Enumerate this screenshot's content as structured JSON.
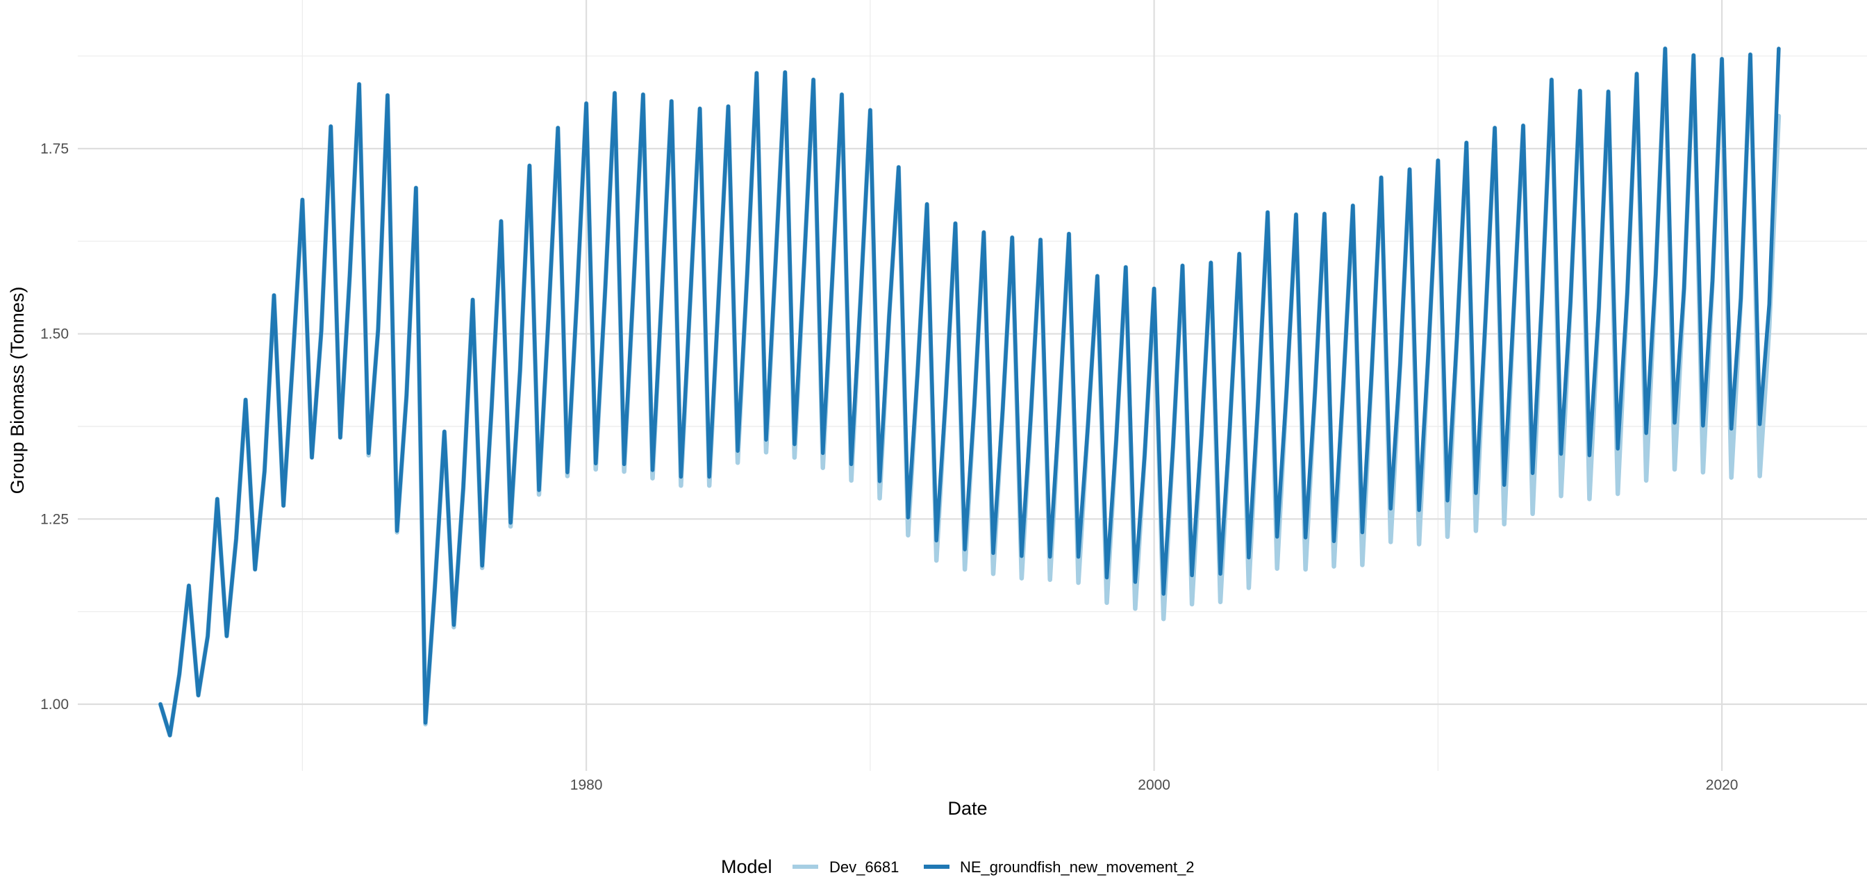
{
  "chart_data": {
    "type": "line",
    "title": "",
    "xlabel": "Date",
    "ylabel": "Group Biomass (Tonnes)",
    "xlim": [
      1964.5,
      2023
    ],
    "ylim": [
      0.935,
      1.895
    ],
    "x_ticks": [
      1980,
      2000,
      2020
    ],
    "x_tick_labels": [
      "1980",
      "2000",
      "2020"
    ],
    "x_minor_ticks": [
      1970,
      1990,
      2010
    ],
    "y_ticks": [
      1.0,
      1.25,
      1.5,
      1.75
    ],
    "y_tick_labels": [
      "1.00",
      "1.25",
      "1.50",
      "1.75"
    ],
    "y_minor_ticks": [
      1.125,
      1.375,
      1.625,
      1.875
    ],
    "grid": true,
    "legend": {
      "title": "Model",
      "position": "bottom",
      "entries": [
        "Dev_6681",
        "NE_groundfish_new_movement_2"
      ]
    },
    "x_start": 1965.0,
    "series": [
      {
        "name": "Dev_6681",
        "color": "#a6cee3",
        "values": [
          1.0,
          0.958,
          1.041,
          1.16,
          1.012,
          1.092,
          1.277,
          1.092,
          1.223,
          1.411,
          1.182,
          1.315,
          1.552,
          1.268,
          1.468,
          1.681,
          1.333,
          1.504,
          1.78,
          1.36,
          1.578,
          1.837,
          1.336,
          1.506,
          1.822,
          1.232,
          1.417,
          1.697,
          0.973,
          1.158,
          1.368,
          1.104,
          1.292,
          1.546,
          1.184,
          1.402,
          1.652,
          1.24,
          1.451,
          1.727,
          1.283,
          1.521,
          1.778,
          1.308,
          1.546,
          1.811,
          1.317,
          1.561,
          1.825,
          1.314,
          1.568,
          1.823,
          1.305,
          1.559,
          1.814,
          1.295,
          1.55,
          1.804,
          1.295,
          1.555,
          1.807,
          1.326,
          1.581,
          1.852,
          1.34,
          1.596,
          1.853,
          1.333,
          1.591,
          1.843,
          1.319,
          1.577,
          1.823,
          1.302,
          1.553,
          1.802,
          1.278,
          1.523,
          1.725,
          1.228,
          1.447,
          1.675,
          1.194,
          1.418,
          1.649,
          1.182,
          1.404,
          1.637,
          1.176,
          1.397,
          1.63,
          1.17,
          1.396,
          1.627,
          1.168,
          1.402,
          1.635,
          1.164,
          1.376,
          1.578,
          1.137,
          1.357,
          1.59,
          1.129,
          1.336,
          1.561,
          1.115,
          1.349,
          1.592,
          1.135,
          1.364,
          1.596,
          1.138,
          1.374,
          1.608,
          1.157,
          1.412,
          1.664,
          1.183,
          1.424,
          1.661,
          1.182,
          1.422,
          1.662,
          1.186,
          1.432,
          1.673,
          1.188,
          1.451,
          1.711,
          1.219,
          1.46,
          1.722,
          1.216,
          1.48,
          1.734,
          1.226,
          1.495,
          1.758,
          1.234,
          1.516,
          1.778,
          1.243,
          1.533,
          1.781,
          1.257,
          1.552,
          1.843,
          1.281,
          1.543,
          1.828,
          1.277,
          1.536,
          1.827,
          1.284,
          1.556,
          1.851,
          1.302,
          1.581,
          1.885,
          1.317,
          1.561,
          1.876,
          1.313,
          1.571,
          1.871,
          1.306,
          1.548,
          1.877,
          1.308,
          1.51,
          1.794
        ]
      },
      {
        "name": "NE_groundfish_new_movement_2",
        "color": "#1f78b4",
        "values": [
          1.0,
          0.958,
          1.041,
          1.16,
          1.012,
          1.092,
          1.277,
          1.092,
          1.223,
          1.411,
          1.182,
          1.315,
          1.552,
          1.268,
          1.468,
          1.681,
          1.333,
          1.504,
          1.78,
          1.36,
          1.578,
          1.837,
          1.339,
          1.506,
          1.822,
          1.234,
          1.417,
          1.697,
          0.975,
          1.158,
          1.368,
          1.107,
          1.292,
          1.546,
          1.187,
          1.402,
          1.652,
          1.245,
          1.451,
          1.727,
          1.289,
          1.521,
          1.778,
          1.313,
          1.546,
          1.811,
          1.325,
          1.561,
          1.825,
          1.324,
          1.568,
          1.823,
          1.316,
          1.559,
          1.814,
          1.307,
          1.55,
          1.804,
          1.307,
          1.555,
          1.807,
          1.342,
          1.581,
          1.852,
          1.357,
          1.596,
          1.853,
          1.351,
          1.591,
          1.843,
          1.339,
          1.577,
          1.823,
          1.324,
          1.553,
          1.802,
          1.301,
          1.523,
          1.725,
          1.252,
          1.447,
          1.675,
          1.221,
          1.418,
          1.649,
          1.209,
          1.404,
          1.637,
          1.204,
          1.397,
          1.63,
          1.2,
          1.396,
          1.627,
          1.199,
          1.402,
          1.635,
          1.199,
          1.376,
          1.578,
          1.171,
          1.357,
          1.59,
          1.165,
          1.336,
          1.561,
          1.149,
          1.349,
          1.592,
          1.174,
          1.364,
          1.596,
          1.176,
          1.374,
          1.608,
          1.198,
          1.412,
          1.664,
          1.226,
          1.424,
          1.661,
          1.225,
          1.422,
          1.662,
          1.22,
          1.432,
          1.673,
          1.232,
          1.451,
          1.711,
          1.264,
          1.46,
          1.722,
          1.262,
          1.48,
          1.734,
          1.275,
          1.495,
          1.758,
          1.285,
          1.516,
          1.778,
          1.296,
          1.533,
          1.781,
          1.312,
          1.552,
          1.843,
          1.338,
          1.543,
          1.828,
          1.336,
          1.536,
          1.827,
          1.345,
          1.556,
          1.851,
          1.366,
          1.581,
          1.885,
          1.38,
          1.561,
          1.876,
          1.376,
          1.571,
          1.871,
          1.372,
          1.548,
          1.877,
          1.378,
          1.54,
          1.885
        ]
      }
    ]
  }
}
